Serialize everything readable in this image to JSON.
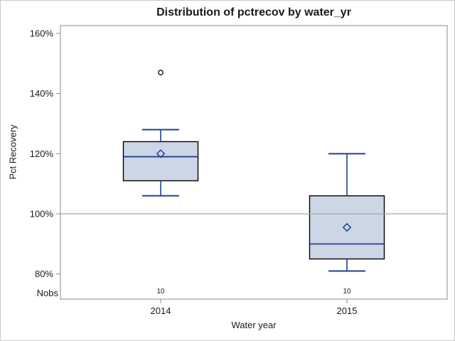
{
  "title": "Distribution of pctrecov by water_yr",
  "chart_data": {
    "type": "boxplot",
    "title": "Distribution of pctrecov by water_yr",
    "xlabel": "Water year",
    "ylabel": "Pct Recovery",
    "nobs_label": "Nobs",
    "categories": [
      "2014",
      "2015"
    ],
    "y_ticks": [
      {
        "value": 160,
        "label": "160%"
      },
      {
        "value": 140,
        "label": "140%"
      },
      {
        "value": 120,
        "label": "120%"
      },
      {
        "value": 100,
        "label": "100%"
      },
      {
        "value": 80,
        "label": "80%"
      }
    ],
    "y_axis_range_at_ticks": [
      80,
      160
    ],
    "reference_line": 100,
    "grid": "off",
    "legend": "none",
    "boxes": [
      {
        "category": "2014",
        "nobs": "10",
        "whisker_low": 106,
        "q1": 111,
        "median": 119,
        "q3": 124,
        "whisker_high": 128,
        "mean": 120,
        "outliers": [
          147
        ]
      },
      {
        "category": "2015",
        "nobs": "10",
        "whisker_low": 81,
        "q1": 85,
        "median": 90,
        "q3": 106,
        "whisker_high": 120,
        "mean": 95.5,
        "outliers": []
      }
    ],
    "colors": {
      "box_fill": "#cdd6e5",
      "box_border": "#000000",
      "whisker": "#1e4296",
      "median": "#1e4296",
      "mean_marker": "#1e4296",
      "outlier": "#000000",
      "reference_line": "#a6a6a6",
      "plot_border": "#8b8b8b",
      "text": "#1a1a1a"
    }
  }
}
